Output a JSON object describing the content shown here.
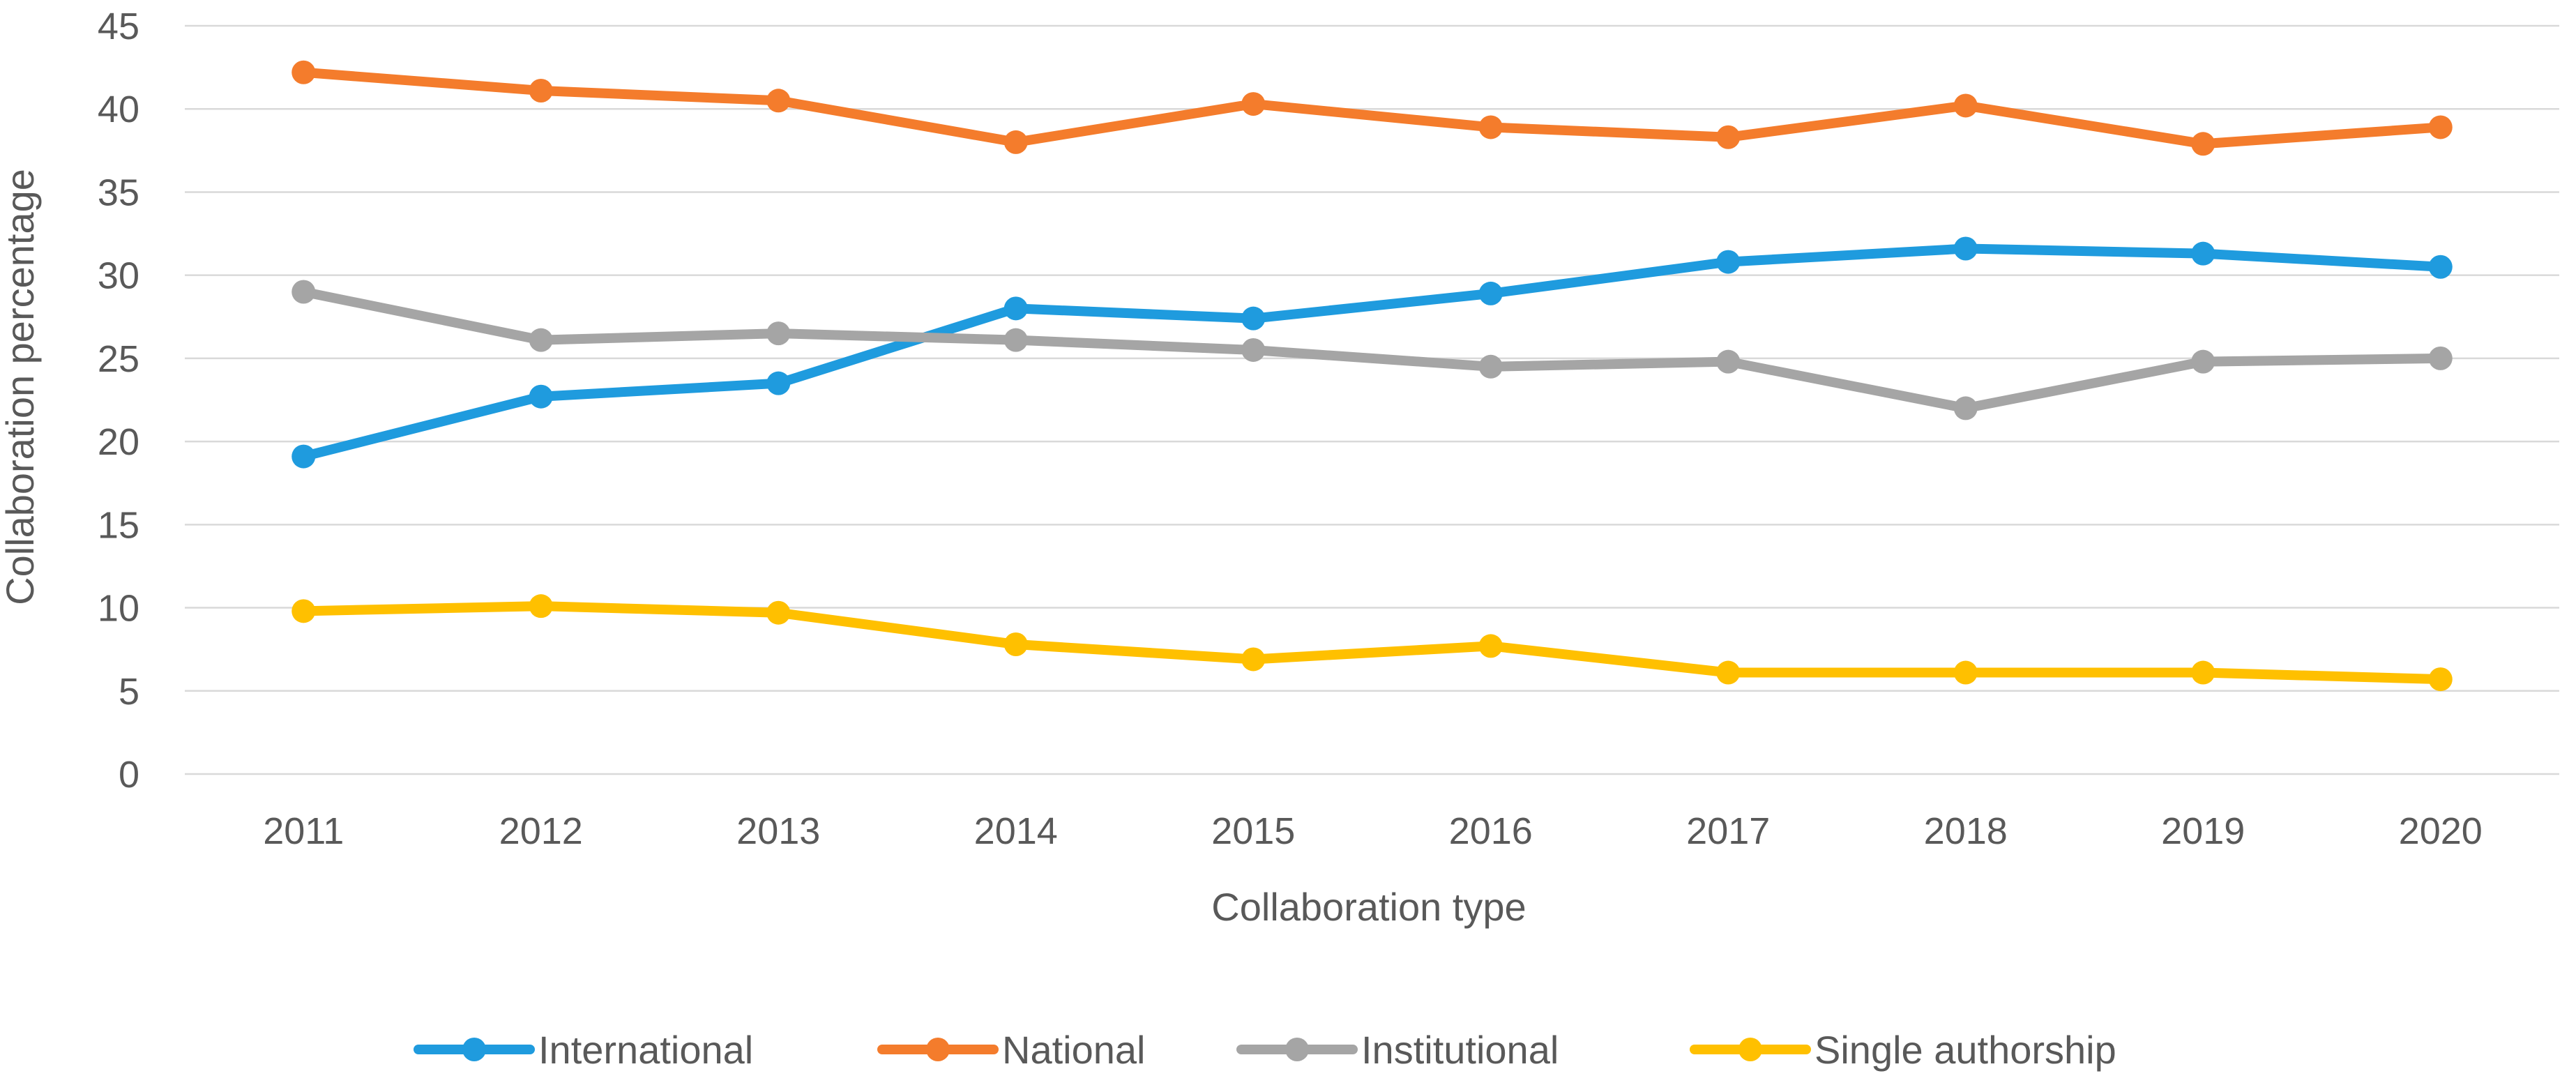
{
  "chart_data": {
    "type": "line",
    "title": "",
    "xlabel": "Collaboration type",
    "ylabel": "Collaboration percentage",
    "categories": [
      "2011",
      "2012",
      "2013",
      "2014",
      "2015",
      "2016",
      "2017",
      "2018",
      "2019",
      "2020"
    ],
    "ylim": [
      0,
      45
    ],
    "yticks": [
      "0",
      "5",
      "10",
      "15",
      "20",
      "25",
      "30",
      "35",
      "40",
      "45"
    ],
    "grid": true,
    "legend_position": "bottom",
    "series": [
      {
        "name": "International",
        "color": "#1f9bde",
        "values": [
          19.1,
          22.7,
          23.5,
          28.0,
          27.4,
          28.9,
          30.8,
          31.6,
          31.3,
          30.5
        ]
      },
      {
        "name": "National",
        "color": "#f47c2c",
        "values": [
          42.2,
          41.1,
          40.5,
          38.0,
          40.3,
          38.9,
          38.3,
          40.2,
          37.9,
          38.9
        ]
      },
      {
        "name": "Institutional",
        "color": "#a5a5a5",
        "values": [
          29.0,
          26.1,
          26.5,
          26.1,
          25.5,
          24.5,
          24.8,
          22.0,
          24.8,
          25.0
        ]
      },
      {
        "name": "Single authorship",
        "color": "#ffc000",
        "values": [
          9.8,
          10.1,
          9.7,
          7.8,
          6.9,
          7.7,
          6.1,
          6.1,
          6.1,
          5.7
        ]
      }
    ]
  }
}
